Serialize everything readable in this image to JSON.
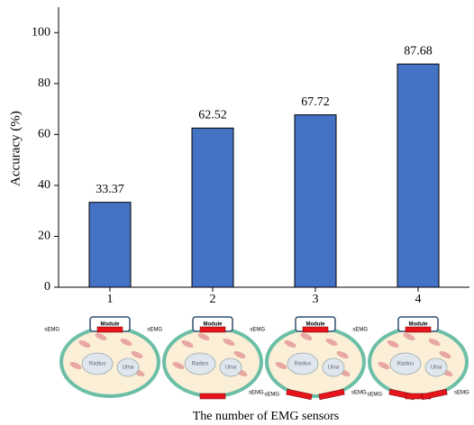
{
  "chart_data": {
    "type": "bar",
    "y_label": "Accuracy (%)",
    "x_label": "The number of EMG sensors",
    "categories": [
      "1",
      "2",
      "3",
      "4"
    ],
    "values": [
      33.37,
      62.52,
      67.72,
      87.68
    ],
    "color": "#4472c4",
    "ylim": [
      0,
      110
    ],
    "yticks": [
      0,
      20,
      40,
      60,
      80,
      100
    ],
    "diagram_labels": {
      "module": "Module",
      "sensor": "sEMG",
      "radius": "Radius",
      "ulna": "Ulna"
    }
  }
}
